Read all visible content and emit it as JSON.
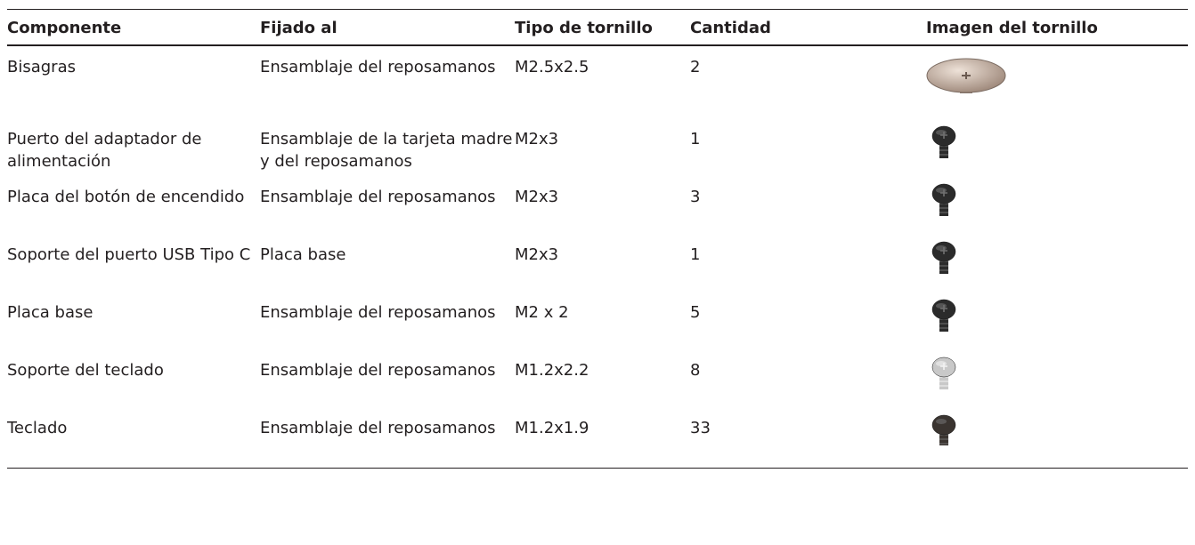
{
  "table": {
    "header": [
      "Componente",
      "Fijado al",
      "Tipo de tornillo",
      "Cantidad",
      "Imagen del tornillo"
    ],
    "rows": [
      [
        "Bisagras",
        "Ensamblaje del reposamanos",
        "M2.5x2.5",
        "2"
      ],
      [
        "Puerto del adaptador de alimentación",
        "Ensamblaje de la tarjeta madre y del reposamanos",
        "M2x3",
        "1"
      ],
      [
        "Placa del botón de encendido",
        "Ensamblaje del reposamanos",
        "M2x3",
        "3"
      ],
      [
        "Soporte del puerto USB Tipo C",
        "Placa base",
        "M2x3",
        "1"
      ],
      [
        "Placa base",
        "Ensamblaje del reposamanos",
        "M2 x 2",
        "5"
      ],
      [
        "Soporte del teclado",
        "Ensamblaje del reposamanos",
        "M1.2x2.2",
        "8"
      ],
      [
        "Teclado",
        "Ensamblaje del reposamanos",
        "M1.2x1.9",
        "33"
      ]
    ]
  }
}
